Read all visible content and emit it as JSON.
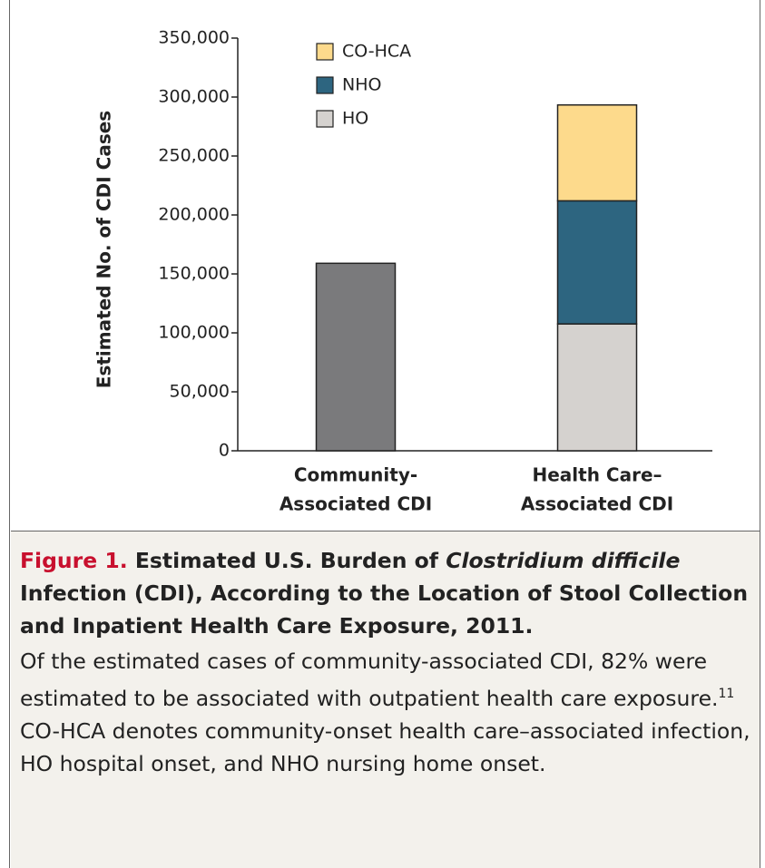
{
  "chart_data": {
    "type": "stacked_bar",
    "y_label": "Estimated No. of CDI Cases",
    "categories": [
      [
        "Community-",
        "Associated CDI"
      ],
      [
        "Health Care–",
        "Associated CDI"
      ]
    ],
    "values": [
      159000,
      null
    ],
    "color": "#7a7a7c",
    "series": [
      {
        "name": "HO",
        "color": "#d5d2cf",
        "values": [
          null,
          107600
        ]
      },
      {
        "name": "NHO",
        "color": "#2d6580",
        "values": [
          null,
          104400
        ]
      },
      {
        "name": "CO-HCA",
        "color": "#fdda8c",
        "values": [
          null,
          81300
        ]
      }
    ],
    "ylim": [
      0,
      350000
    ],
    "yticks": [
      0,
      {
        "value": 50000,
        "label": "50,000"
      },
      {
        "value": 100000,
        "label": "100,000"
      },
      {
        "value": 150000,
        "label": "150,000"
      },
      {
        "value": 200000,
        "label": "200,000"
      },
      {
        "value": 250000,
        "label": "250,000"
      },
      {
        "value": 300000,
        "label": "300,000"
      },
      {
        "value": 350000,
        "label": "350,000"
      }
    ],
    "grid": false
  },
  "caption": {
    "label": "Figure 1.",
    "title_start": "Estimated U.S. Burden of",
    "title_italic": "Clostridium difficile",
    "title_end": "Infection (CDI), According to the Location of Stool Collection and Inpatient Health Care Exposure, 2011.",
    "body_start": "Of the estimated cases of community-associated CDI, 82% were estimated to be associated with outpatient health care exposure.",
    "reference": "11",
    "body_end": "CO-HCA denotes community-onset health care–associated infection, HO hospital onset, and NHO nursing home onset."
  }
}
